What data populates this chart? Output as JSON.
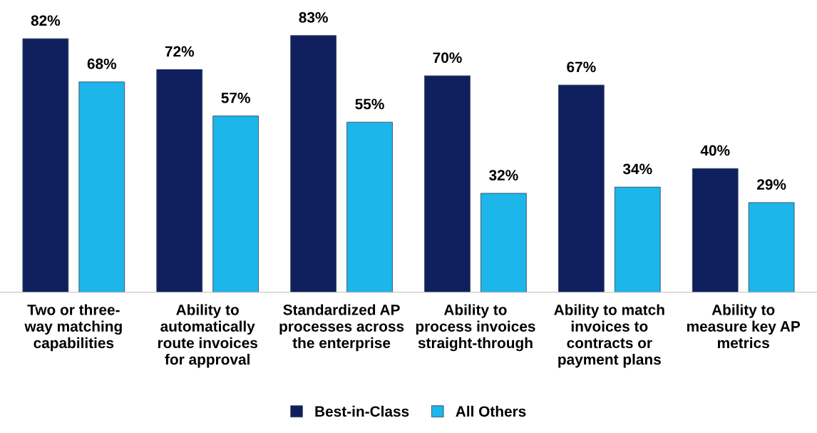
{
  "chart_data": {
    "type": "bar",
    "categories": [
      "Two or three-\nway matching\ncapabilities",
      "Ability to\nautomatically\nroute invoices\nfor approval",
      "Standardized AP\nprocesses across\nthe enterprise",
      "Ability to\nprocess invoices\nstraight-through",
      "Ability to match\ninvoices to\ncontracts or\npayment plans",
      "Ability to\nmeasure key AP\nmetrics"
    ],
    "series": [
      {
        "name": "Best-in-Class",
        "color": "#0f1f5e",
        "values": [
          82,
          72,
          83,
          70,
          67,
          40
        ],
        "value_labels": [
          "82%",
          "72%",
          "83%",
          "70%",
          "67%",
          "40%"
        ]
      },
      {
        "name": "All Others",
        "color": "#1cb6ea",
        "values": [
          68,
          57,
          55,
          32,
          34,
          29
        ],
        "value_labels": [
          "68%",
          "57%",
          "55%",
          "32%",
          "34%",
          "29%"
        ]
      }
    ],
    "legend": "bottom",
    "grid": false
  }
}
